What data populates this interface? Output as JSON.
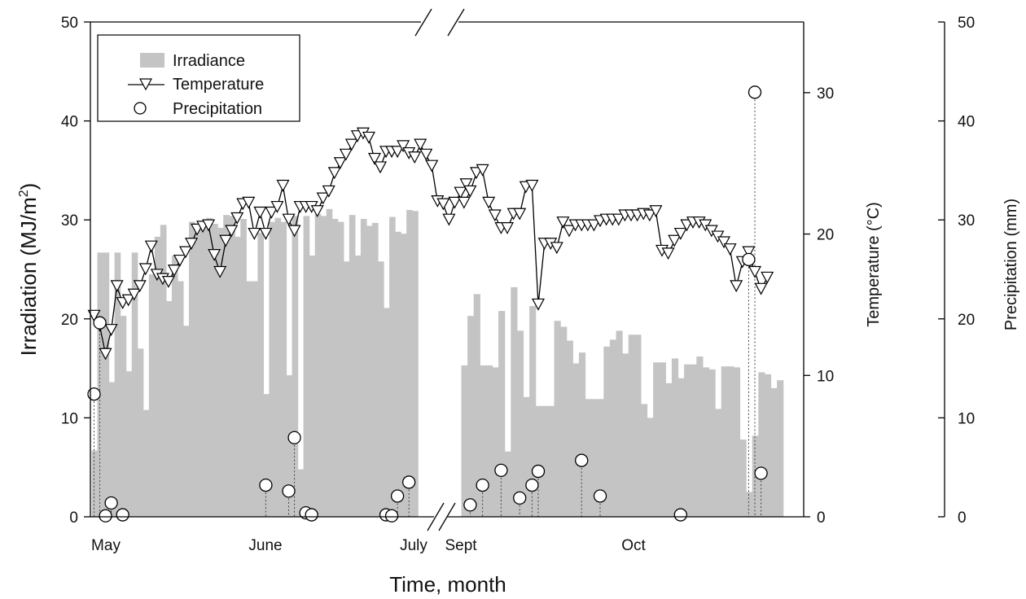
{
  "chart_data": {
    "type": "bar",
    "title": "",
    "xlabel": "Time, month",
    "month_labels": [
      "May",
      "June",
      "July",
      "Sept",
      "Oct"
    ],
    "axes": {
      "irradiation": {
        "label_main": "Irradiation (MJ/m",
        "label_sup": "2",
        "label_end": ")",
        "range": [
          0,
          50
        ],
        "ticks": [
          0,
          10,
          20,
          30,
          40,
          50
        ]
      },
      "temperature": {
        "label": "Temperature (°C)",
        "range": [
          0,
          35
        ],
        "ticks": [
          0,
          10,
          20,
          30
        ]
      },
      "precipitation": {
        "label": "Precipitation (mm)",
        "range": [
          0,
          50
        ],
        "ticks": [
          0,
          10,
          20,
          30,
          40,
          50
        ]
      }
    },
    "legend": {
      "position": "top-left",
      "entries": [
        "Irradiance",
        "Temperature",
        "Precipitation"
      ]
    },
    "series": [
      {
        "name": "Irradiance",
        "axis": "irradiation",
        "segments": [
          {
            "day_start": 0,
            "values": [
              6.7,
              26.7,
              26.7,
              13.6,
              26.7,
              20.3,
              14.7,
              26.7,
              17,
              10.8,
              24.5,
              28.3,
              29.5,
              21.8,
              26.4,
              23.8,
              19.3,
              29.8,
              29.5,
              29.8,
              30.2,
              29.6,
              29.2,
              30.5,
              30.4,
              28.3,
              30.1,
              23.8,
              23.8,
              28.7,
              12.4,
              29.8,
              30.2,
              29.8,
              14.3,
              30.4,
              4.8,
              30.4,
              26.4,
              30.6,
              30.4,
              31.1,
              30.1,
              29.8,
              25.8,
              30.5,
              26.4,
              30.1,
              29.4,
              29.7,
              25.8,
              21.1,
              30.3,
              28.8,
              28.6,
              31.0,
              30.9
            ]
          },
          {
            "day_start": 0,
            "values": [
              15.3,
              20.3,
              22.5,
              15.3,
              15.3,
              15.1,
              20.8,
              6.6,
              23.2,
              18.8,
              12.1,
              21.3,
              11.2,
              11.2,
              11.2,
              19.8,
              19.2,
              17.8,
              15.5,
              16.6,
              11.9,
              11.9,
              11.9,
              17.2,
              17.9,
              18.8,
              16.5,
              18.4,
              18.4,
              11.4,
              10.0,
              15.6,
              15.6,
              13.5,
              16.0,
              14.0,
              15.4,
              15.4,
              16.2,
              15.1,
              14.9,
              10.9,
              15.2,
              15.2,
              15.1,
              7.8,
              2.5,
              8.2,
              14.6,
              14.4,
              13.0,
              13.8
            ]
          }
        ]
      },
      {
        "name": "Temperature",
        "axis": "temperature",
        "segments": [
          {
            "day_start": 0,
            "values": [
              14.2,
              13.5,
              11.5,
              13.2,
              16.3,
              15.1,
              15.3,
              15.7,
              16.3,
              17.5,
              19.1,
              17.1,
              16.8,
              16.6,
              17.4,
              18.1,
              18.7,
              19.3,
              20.3,
              20.5,
              20.6,
              18.5,
              17.3,
              19.5,
              20.2,
              21.1,
              22.1,
              22.2,
              20.0,
              21.5,
              20.0,
              21.5,
              21.9,
              23.4,
              21.0,
              20.2,
              21.9,
              21.9,
              21.9,
              21.6,
              22.5,
              23.0,
              24.3,
              25.0,
              25.6,
              26.3,
              26.9,
              27.1,
              26.8,
              25.3,
              24.7,
              25.8,
              25.8,
              25.8,
              26.2,
              25.7,
              25.4,
              26.3,
              25.6,
              24.8,
              22.3,
              22.1,
              21.0,
              22.2,
              22.9,
              23.5
            ]
          },
          {
            "day_start": 0,
            "values": [
              22.2,
              23.0,
              24.3,
              24.5,
              22.2,
              21.3,
              20.4,
              20.4,
              21.4,
              21.4,
              23.3,
              23.4,
              15.0,
              19.3,
              19.3,
              19.0,
              20.8,
              20.2,
              20.6,
              20.6,
              20.6,
              20.6,
              20.9,
              21.0,
              21.0,
              21.0,
              21.3,
              21.3,
              21.3,
              21.4,
              21.3,
              21.6,
              18.8,
              18.6,
              19.5,
              20.0,
              20.6,
              20.8,
              20.8,
              20.6,
              20.2,
              19.8,
              19.4,
              18.9,
              16.3,
              18.0,
              18.7,
              17.3,
              16.1,
              16.9
            ]
          }
        ]
      },
      {
        "name": "Precipitation",
        "axis": "precipitation",
        "segments": [
          {
            "day_start": 0,
            "points": [
              [
                0,
                12.4
              ],
              [
                1,
                19.6
              ],
              [
                2,
                0.1
              ],
              [
                3,
                1.4
              ],
              [
                5,
                0.2
              ],
              [
                30,
                3.2
              ],
              [
                34,
                2.6
              ],
              [
                35,
                8.0
              ],
              [
                37,
                0.4
              ],
              [
                38,
                0.2
              ],
              [
                51,
                0.2
              ],
              [
                52,
                0.1
              ],
              [
                53,
                2.1
              ],
              [
                55,
                3.5
              ]
            ]
          },
          {
            "day_start": 0,
            "points": [
              [
                1,
                1.2
              ],
              [
                3,
                3.2
              ],
              [
                6,
                4.7
              ],
              [
                9,
                1.9
              ],
              [
                11,
                3.2
              ],
              [
                12,
                4.6
              ],
              [
                19,
                5.7
              ],
              [
                22,
                2.1
              ],
              [
                35,
                0.2
              ],
              [
                46,
                26.0
              ],
              [
                47,
                42.9
              ],
              [
                48,
                4.4
              ]
            ]
          }
        ]
      }
    ]
  }
}
